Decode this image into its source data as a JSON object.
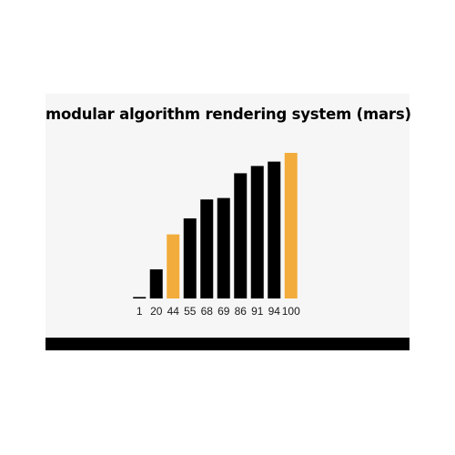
{
  "chart_data": {
    "type": "bar",
    "title": "modular algorithm rendering system (mars)",
    "categories": [
      "1",
      "20",
      "44",
      "55",
      "68",
      "69",
      "86",
      "91",
      "94",
      "100"
    ],
    "values": [
      1,
      20,
      44,
      55,
      68,
      69,
      86,
      91,
      94,
      100
    ],
    "highlighted": [
      "44",
      "100"
    ],
    "xlabel": "",
    "ylabel": "",
    "ylim": [
      0,
      100
    ],
    "grid": false,
    "legend": "none",
    "colors": {
      "default": "#000000",
      "highlight": "#f2ac3b"
    }
  }
}
